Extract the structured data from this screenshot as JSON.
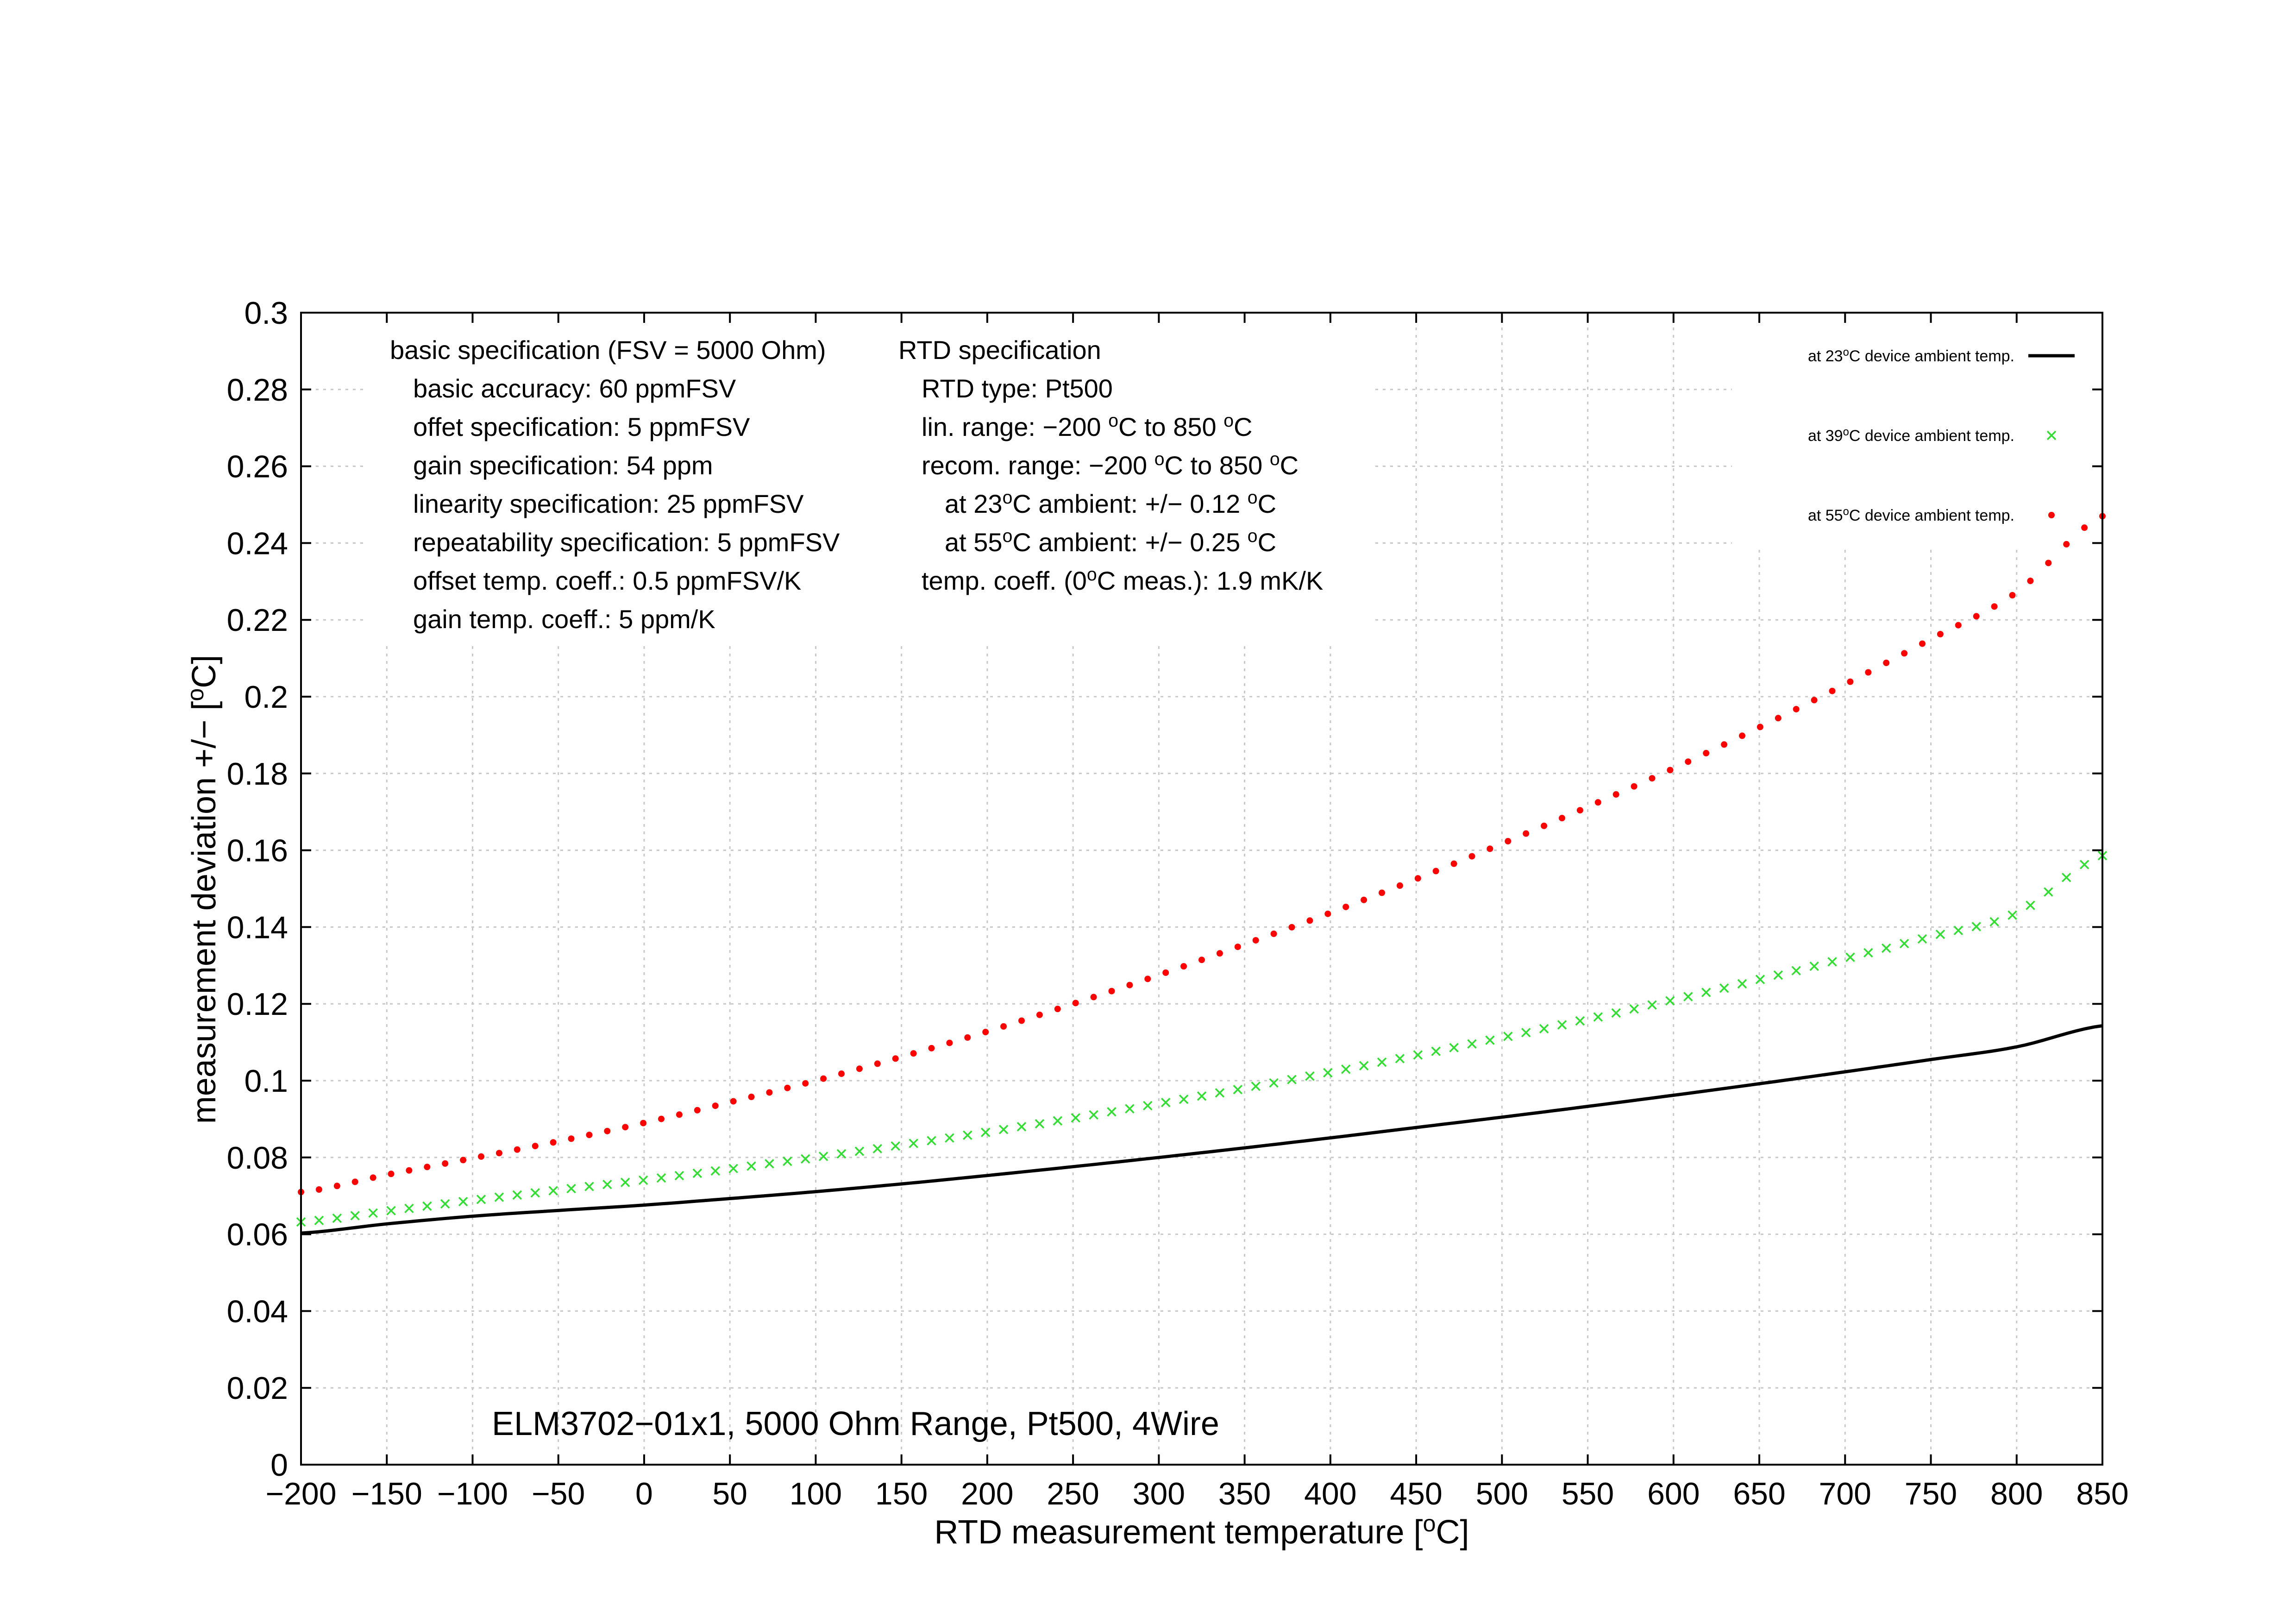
{
  "chart_data": {
    "type": "line",
    "title": "",
    "caption": "ELM3702−01x1, 5000 Ohm Range, Pt500, 4Wire",
    "xlabel": {
      "pre": "RTD measurement temperature [",
      "sup": "o",
      "post": "C]"
    },
    "ylabel": {
      "pre": "measurement deviation +/− [",
      "sup": "o",
      "post": "C]"
    },
    "xlim": [
      -200,
      850
    ],
    "ylim": [
      0,
      0.3
    ],
    "xticks": [
      -200,
      -150,
      -100,
      -50,
      0,
      50,
      100,
      150,
      200,
      250,
      300,
      350,
      400,
      450,
      500,
      550,
      600,
      650,
      700,
      750,
      800,
      850
    ],
    "xtick_labels": [
      "−200",
      "−150",
      "−100",
      "−50",
      "0",
      "50",
      "100",
      "150",
      "200",
      "250",
      "300",
      "350",
      "400",
      "450",
      "500",
      "550",
      "600",
      "650",
      "700",
      "750",
      "800",
      "850"
    ],
    "yticks": [
      0,
      0.02,
      0.04,
      0.06,
      0.08,
      0.1,
      0.12,
      0.14,
      0.16,
      0.18,
      0.2,
      0.22,
      0.24,
      0.26,
      0.28,
      0.3
    ],
    "ytick_labels": [
      "0",
      "0.02",
      "0.04",
      "0.06",
      "0.08",
      "0.1",
      "0.12",
      "0.14",
      "0.16",
      "0.18",
      "0.2",
      "0.22",
      "0.24",
      "0.26",
      "0.28",
      "0.3"
    ],
    "grid": true,
    "legend_position": "top-right",
    "series": [
      {
        "legend": {
          "pre": "at 23",
          "sup": "o",
          "post": "C device ambient temp."
        },
        "style": "line",
        "color": "#000000",
        "x": [
          -200,
          -150,
          -100,
          -50,
          0,
          50,
          100,
          150,
          200,
          250,
          300,
          350,
          400,
          450,
          500,
          550,
          600,
          650,
          700,
          750,
          800,
          850
        ],
        "y": [
          0.0603,
          0.0627,
          0.0647,
          0.0662,
          0.0676,
          0.0693,
          0.0711,
          0.0731,
          0.0753,
          0.0776,
          0.08,
          0.0825,
          0.0851,
          0.0878,
          0.0905,
          0.0933,
          0.0962,
          0.0992,
          0.1023,
          0.1055,
          0.1088,
          0.1143
        ]
      },
      {
        "legend": {
          "pre": "at 39",
          "sup": "o",
          "post": "C device ambient temp."
        },
        "style": "cross",
        "color": "#33dd33",
        "x": [
          -200,
          -150,
          -100,
          -50,
          0,
          50,
          100,
          150,
          200,
          250,
          300,
          350,
          400,
          450,
          500,
          550,
          600,
          650,
          700,
          750,
          800,
          850
        ],
        "y": [
          0.0632,
          0.066,
          0.0688,
          0.0715,
          0.0741,
          0.077,
          0.08,
          0.0832,
          0.0866,
          0.0902,
          0.094,
          0.098,
          0.1022,
          0.1066,
          0.1112,
          0.116,
          0.121,
          0.1263,
          0.1318,
          0.1375,
          0.1436,
          0.1586
        ]
      },
      {
        "legend": {
          "pre": "at 55",
          "sup": "o",
          "post": "C device ambient temp."
        },
        "style": "dot",
        "color": "#ff0000",
        "x": [
          -200,
          -150,
          -100,
          -50,
          0,
          50,
          100,
          150,
          200,
          250,
          300,
          350,
          400,
          450,
          500,
          550,
          600,
          650,
          700,
          750,
          800,
          850
        ],
        "y": [
          0.071,
          0.0755,
          0.0798,
          0.0842,
          0.089,
          0.0944,
          0.1,
          0.1062,
          0.1128,
          0.12,
          0.1275,
          0.1355,
          0.1437,
          0.1525,
          0.1617,
          0.1713,
          0.1813,
          0.192,
          0.2032,
          0.215,
          0.2272,
          0.247
        ]
      }
    ],
    "annotations": {
      "basic_spec": [
        "basic specification (FSV = 5000 Ohm)",
        "basic accuracy: 60 ppmFSV",
        "offet specification: 5 ppmFSV",
        "gain specification: 54 ppm",
        "linearity specification: 25 ppmFSV",
        "repeatability specification: 5 ppmFSV",
        "offset temp. coeff.: 0.5 ppmFSV/K",
        "gain temp. coeff.: 5 ppm/K"
      ],
      "rtd_spec": [
        {
          "pre": "RTD specification"
        },
        {
          "pre": "RTD type: Pt500"
        },
        {
          "pre": "lin. range: −200 ",
          "sup": "o",
          "post": "C to 850 ",
          "sup2": "o",
          "post2": "C"
        },
        {
          "pre": "recom. range: −200 ",
          "sup": "o",
          "post": "C to 850 ",
          "sup2": "o",
          "post2": "C"
        },
        {
          "pre": "at 23",
          "sup": "o",
          "post": "C ambient: +/− 0.12 ",
          "sup2": "o",
          "post2": "C"
        },
        {
          "pre": "at 55",
          "sup": "o",
          "post": "C ambient: +/− 0.25 ",
          "sup2": "o",
          "post2": "C"
        },
        {
          "pre": "temp. coeff. (0",
          "sup": "o",
          "post": "C meas.): 1.9 mK/K"
        }
      ]
    }
  }
}
